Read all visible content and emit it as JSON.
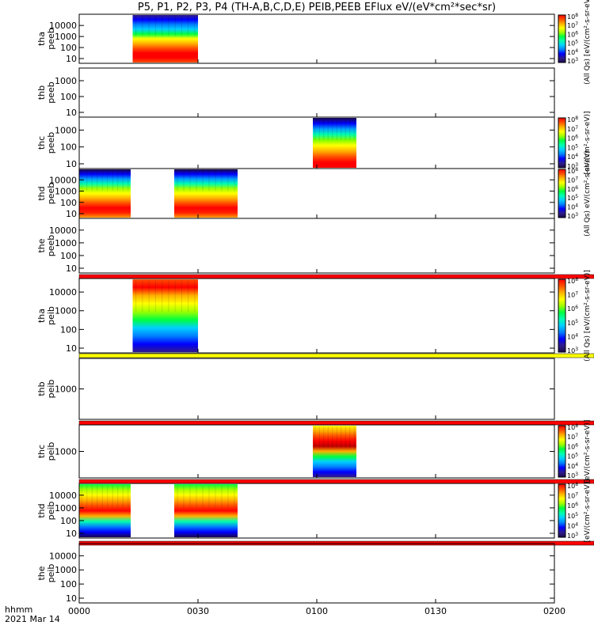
{
  "title": "P5, P1, P2, P3, P4 (TH-A,B,C,D,E) PEIB,PEEB EFlux eV/(eV*cm²*sec*sr)",
  "bottom_label_line1": "hhmm",
  "bottom_label_line2": "2021 Mar 14",
  "chart_data": {
    "type": "heatmap",
    "x_axis": {
      "range": [
        "0000",
        "0200"
      ],
      "tick_labels": [
        "0000",
        "0030",
        "0100",
        "0130",
        "0200"
      ]
    },
    "colorbar": {
      "tick_labels": [
        "10^3",
        "10^4",
        "10^5",
        "10^6",
        "10^7",
        "10^8"
      ],
      "labels": {
        "a": "(All Qs) [eV/(cm²-s-sr-eV)]",
        "b": "[eV/(cm²-s-sr-eV)]",
        "c": "(All Qs) eV/(cm²-s-sr-eV)",
        "d": "[eV/(cm²-s-sr-eV)]"
      },
      "colors": [
        "#1a0a4a",
        "#2f1c8a",
        "#0000ff",
        "#0080ff",
        "#00d0ff",
        "#00ffb0",
        "#00ff40",
        "#a0ff00",
        "#ffff00",
        "#ffb000",
        "#ff5000",
        "#ff0000"
      ]
    },
    "panels": [
      {
        "label_line1": "tha",
        "label_line2": "peeb",
        "y_ticks": [
          "10",
          "100",
          "1000",
          "10000"
        ],
        "data_spans": [
          [
            13.5,
            30
          ]
        ],
        "profile": "electron_a"
      },
      {
        "label_line1": "thb",
        "label_line2": "peeb",
        "y_ticks": [
          "10",
          "100",
          "1000"
        ],
        "data_spans": [],
        "profile": "none"
      },
      {
        "label_line1": "thc",
        "label_line2": "peeb",
        "y_ticks": [
          "10",
          "100",
          "1000"
        ],
        "data_spans": [
          [
            59,
            70
          ]
        ],
        "profile": "electron_c"
      },
      {
        "label_line1": "thd",
        "label_line2": "peeb",
        "y_ticks": [
          "10",
          "100",
          "1000",
          "10000"
        ],
        "data_spans": [
          [
            0,
            13
          ],
          [
            24,
            40
          ]
        ],
        "profile": "electron_d"
      },
      {
        "label_line1": "the",
        "label_line2": "peeb",
        "y_ticks": [
          "10",
          "100",
          "1000",
          "10000"
        ],
        "data_spans": [],
        "profile": "none",
        "bottom_stripe": "#ff0000"
      },
      {
        "label_line1": "tha",
        "label_line2": "peib",
        "y_ticks": [
          "10",
          "100",
          "1000",
          "10000"
        ],
        "data_spans": [
          [
            13.5,
            30
          ]
        ],
        "profile": "ion_a",
        "bottom_stripe": "#ffff00"
      },
      {
        "label_line1": "thb",
        "label_line2": "peib",
        "y_ticks": [
          "1000"
        ],
        "data_spans": [],
        "profile": "none",
        "bottom_stripe": "#ff0000"
      },
      {
        "label_line1": "thc",
        "label_line2": "peib",
        "y_ticks": [
          "1000"
        ],
        "data_spans": [
          [
            59,
            70
          ]
        ],
        "profile": "ion_c",
        "bottom_stripe": "#ff0000"
      },
      {
        "label_line1": "thd",
        "label_line2": "peib",
        "y_ticks": [
          "10",
          "100",
          "1000",
          "10000"
        ],
        "data_spans": [
          [
            0,
            13
          ],
          [
            24,
            40
          ]
        ],
        "profile": "ion_d",
        "bottom_stripe": "#ff0000"
      },
      {
        "label_line1": "the",
        "label_line2": "peib",
        "y_ticks": [
          "10",
          "100",
          "1000",
          "10000"
        ],
        "data_spans": [],
        "profile": "none"
      }
    ]
  }
}
